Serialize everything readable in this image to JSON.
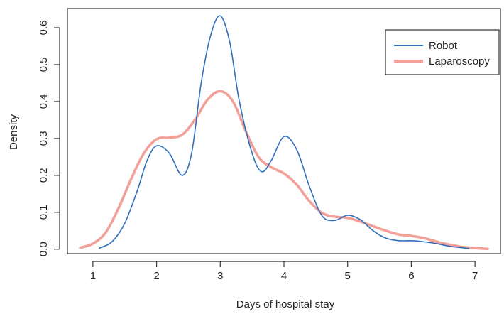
{
  "chart_data": {
    "type": "line",
    "title": "",
    "xlabel": "Days of hospital stay",
    "ylabel": "Density",
    "xlim": [
      0.6,
      7.4
    ],
    "ylim": [
      -0.012,
      0.652
    ],
    "x_ticks": [
      "1",
      "2",
      "3",
      "4",
      "5",
      "6",
      "7"
    ],
    "y_ticks": [
      "0.0",
      "0.1",
      "0.2",
      "0.3",
      "0.4",
      "0.5",
      "0.6"
    ],
    "grid": false,
    "legend_position": "top-right",
    "series": [
      {
        "name": "Robot",
        "color": "#2f6fbf",
        "x": [
          1.1,
          1.3,
          1.5,
          1.7,
          1.85,
          2.0,
          2.2,
          2.4,
          2.55,
          2.7,
          2.85,
          3.0,
          3.15,
          3.3,
          3.5,
          3.65,
          3.8,
          4.0,
          4.2,
          4.4,
          4.6,
          4.8,
          5.0,
          5.2,
          5.4,
          5.6,
          5.8,
          6.0,
          6.2,
          6.4,
          6.6,
          6.9
        ],
        "y": [
          0.003,
          0.02,
          0.07,
          0.16,
          0.24,
          0.28,
          0.26,
          0.2,
          0.26,
          0.45,
          0.58,
          0.632,
          0.56,
          0.4,
          0.26,
          0.21,
          0.24,
          0.305,
          0.27,
          0.17,
          0.09,
          0.078,
          0.092,
          0.08,
          0.05,
          0.03,
          0.023,
          0.023,
          0.02,
          0.015,
          0.008,
          0.002
        ]
      },
      {
        "name": "Laparoscopy",
        "color": "#f2a09a",
        "x": [
          0.8,
          1.0,
          1.2,
          1.4,
          1.6,
          1.8,
          2.0,
          2.2,
          2.4,
          2.6,
          2.8,
          3.0,
          3.2,
          3.4,
          3.6,
          3.8,
          4.0,
          4.2,
          4.4,
          4.6,
          4.8,
          5.0,
          5.2,
          5.4,
          5.6,
          5.8,
          6.0,
          6.2,
          6.4,
          6.6,
          6.8,
          7.0,
          7.2
        ],
        "y": [
          0.004,
          0.015,
          0.045,
          0.11,
          0.19,
          0.26,
          0.298,
          0.302,
          0.31,
          0.35,
          0.405,
          0.428,
          0.4,
          0.32,
          0.25,
          0.222,
          0.205,
          0.175,
          0.13,
          0.098,
          0.088,
          0.085,
          0.075,
          0.062,
          0.05,
          0.04,
          0.036,
          0.03,
          0.02,
          0.012,
          0.006,
          0.003,
          0.001
        ]
      }
    ]
  }
}
